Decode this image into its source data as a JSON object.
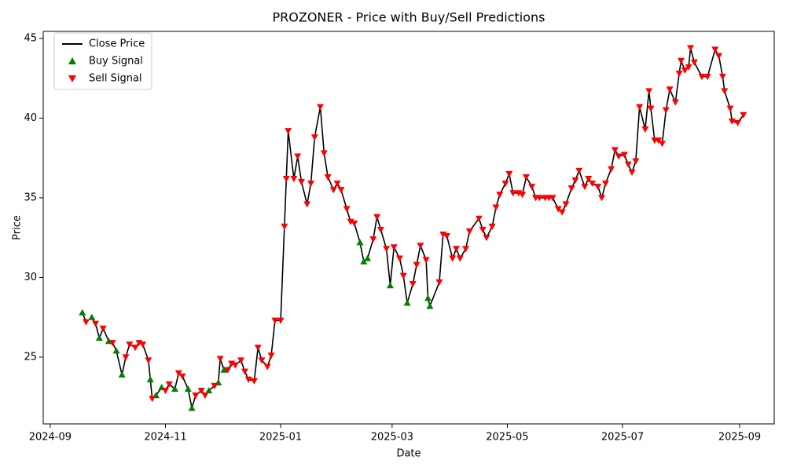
{
  "chart_data": {
    "type": "line",
    "title": "PROZONER - Price with Buy/Sell Predictions",
    "x_label": "Date",
    "y_label": "Price",
    "xlim": [
      19963.3,
      20350.3
    ],
    "ylim": [
      20.81,
      45.44
    ],
    "xticks": [
      {
        "value": 19967,
        "label": "2024-09"
      },
      {
        "value": 20028,
        "label": "2024-11"
      },
      {
        "value": 20089,
        "label": "2025-01"
      },
      {
        "value": 20148,
        "label": "2025-03"
      },
      {
        "value": 20209,
        "label": "2025-05"
      },
      {
        "value": 20270,
        "label": "2025-07"
      },
      {
        "value": 20332,
        "label": "2025-09"
      }
    ],
    "yticks": [
      25,
      30,
      35,
      40,
      45
    ],
    "legend": "upper left",
    "series": [
      {
        "name": "Close Price",
        "type": "line",
        "color": "#000000",
        "x": [
          19984,
          19986,
          19989,
          19991,
          19993,
          19995,
          19998,
          20000,
          20002,
          20005,
          20007,
          20009,
          20012,
          20014,
          20016,
          20019,
          20020,
          20021,
          20023,
          20026,
          20028,
          20030,
          20033,
          20035,
          20037,
          20040,
          20042,
          20044,
          20047,
          20049,
          20051,
          20054,
          20056,
          20057,
          20059,
          20061,
          20063,
          20065,
          20068,
          20070,
          20072,
          20075,
          20077,
          20079,
          20082,
          20084,
          20086,
          20089,
          20091,
          20092,
          20093,
          20096,
          20098,
          20100,
          20103,
          20105,
          20107,
          20110,
          20112,
          20114,
          20117,
          20119,
          20121,
          20124,
          20126,
          20128,
          20131,
          20133,
          20135,
          20138,
          20140,
          20142,
          20145,
          20147,
          20149,
          20152,
          20154,
          20156,
          20159,
          20161,
          20163,
          20166,
          20167,
          20168,
          20173,
          20175,
          20177,
          20180,
          20182,
          20184,
          20187,
          20189,
          20194,
          20196,
          20198,
          20201,
          20203,
          20205,
          20208,
          20210,
          20212,
          20215,
          20217,
          20219,
          20222,
          20224,
          20226,
          20229,
          20231,
          20233,
          20236,
          20238,
          20240,
          20243,
          20245,
          20247,
          20250,
          20252,
          20254,
          20257,
          20259,
          20261,
          20264,
          20266,
          20268,
          20271,
          20273,
          20275,
          20277,
          20279,
          20282,
          20284,
          20285,
          20287,
          20289,
          20291,
          20293,
          20295,
          20298,
          20300,
          20301,
          20303,
          20305,
          20306,
          20308,
          20312,
          20315,
          20319,
          20321,
          20323,
          20324,
          20327,
          20328,
          20331,
          20334
        ],
        "values": [
          27.8,
          27.2,
          27.5,
          27.1,
          26.2,
          26.8,
          26.0,
          25.9,
          25.4,
          23.9,
          25.0,
          25.8,
          25.6,
          25.9,
          25.8,
          24.8,
          23.6,
          22.4,
          22.6,
          23.1,
          22.9,
          23.3,
          23.0,
          24.0,
          23.8,
          23.0,
          21.8,
          22.6,
          22.9,
          22.6,
          22.9,
          23.2,
          23.4,
          24.9,
          24.2,
          24.2,
          24.6,
          24.5,
          24.8,
          24.1,
          23.6,
          23.5,
          25.6,
          24.8,
          24.4,
          25.1,
          27.3,
          27.3,
          33.2,
          36.2,
          39.2,
          36.2,
          37.6,
          36.0,
          34.6,
          35.9,
          38.8,
          40.7,
          37.8,
          36.3,
          35.5,
          35.9,
          35.5,
          34.3,
          33.5,
          33.4,
          32.2,
          31.0,
          31.2,
          32.4,
          33.8,
          33.0,
          31.8,
          29.5,
          31.9,
          31.2,
          30.1,
          28.4,
          29.6,
          30.8,
          32.0,
          31.1,
          28.7,
          28.2,
          29.7,
          32.7,
          32.6,
          31.2,
          31.8,
          31.2,
          31.8,
          32.9,
          33.7,
          33.0,
          32.5,
          33.2,
          34.4,
          35.2,
          35.9,
          36.5,
          35.3,
          35.3,
          35.2,
          36.3,
          35.7,
          35.0,
          35.0,
          35.0,
          35.0,
          35.0,
          34.3,
          34.1,
          34.6,
          35.6,
          36.1,
          36.7,
          35.7,
          36.2,
          35.9,
          35.7,
          35.0,
          35.9,
          36.8,
          38.0,
          37.6,
          37.7,
          37.1,
          36.6,
          37.3,
          40.7,
          39.3,
          41.7,
          40.6,
          38.6,
          38.6,
          38.4,
          40.5,
          41.8,
          41.0,
          42.8,
          43.6,
          43.0,
          43.2,
          44.4,
          43.5,
          42.6,
          42.6,
          44.3,
          43.9,
          42.6,
          41.7,
          40.6,
          39.8,
          39.7,
          40.2
        ]
      },
      {
        "name": "Buy Signal",
        "type": "scatter",
        "marker": "triangle-up",
        "color": "#008000",
        "x": [
          19984,
          19989,
          19993,
          19998,
          20002,
          20005,
          20020,
          20023,
          20026,
          20033,
          20040,
          20042,
          20051,
          20056,
          20059,
          20131,
          20133,
          20135,
          20147,
          20156,
          20167,
          20168
        ],
        "values": [
          27.8,
          27.5,
          26.2,
          26.0,
          25.4,
          23.9,
          23.6,
          22.6,
          23.1,
          23.0,
          23.0,
          21.8,
          22.9,
          23.4,
          24.2,
          32.2,
          31.0,
          31.2,
          29.5,
          28.4,
          28.7,
          28.2
        ]
      },
      {
        "name": "Sell Signal",
        "type": "scatter",
        "marker": "triangle-down",
        "color": "#ff0000",
        "x": [
          19986,
          19991,
          19995,
          20000,
          20007,
          20009,
          20012,
          20014,
          20016,
          20019,
          20021,
          20028,
          20030,
          20035,
          20037,
          20044,
          20047,
          20049,
          20054,
          20057,
          20061,
          20063,
          20065,
          20068,
          20070,
          20072,
          20075,
          20077,
          20079,
          20082,
          20084,
          20086,
          20089,
          20091,
          20092,
          20093,
          20096,
          20098,
          20100,
          20103,
          20105,
          20107,
          20110,
          20112,
          20114,
          20117,
          20119,
          20121,
          20124,
          20126,
          20128,
          20138,
          20140,
          20142,
          20145,
          20149,
          20152,
          20154,
          20159,
          20161,
          20163,
          20166,
          20173,
          20175,
          20177,
          20180,
          20182,
          20184,
          20187,
          20189,
          20194,
          20196,
          20198,
          20201,
          20203,
          20205,
          20208,
          20210,
          20212,
          20215,
          20217,
          20219,
          20222,
          20224,
          20226,
          20229,
          20231,
          20233,
          20236,
          20238,
          20240,
          20243,
          20245,
          20247,
          20250,
          20252,
          20254,
          20257,
          20259,
          20261,
          20264,
          20266,
          20268,
          20271,
          20273,
          20275,
          20277,
          20279,
          20282,
          20284,
          20285,
          20287,
          20289,
          20291,
          20293,
          20295,
          20298,
          20300,
          20301,
          20303,
          20305,
          20306,
          20308,
          20312,
          20315,
          20319,
          20321,
          20323,
          20324,
          20327,
          20328,
          20331,
          20334
        ],
        "values": [
          27.2,
          27.1,
          26.8,
          25.9,
          25.0,
          25.8,
          25.6,
          25.9,
          25.8,
          24.8,
          22.4,
          22.9,
          23.3,
          24.0,
          23.8,
          22.6,
          22.9,
          22.6,
          23.2,
          24.9,
          24.2,
          24.6,
          24.5,
          24.8,
          24.1,
          23.6,
          23.5,
          25.6,
          24.8,
          24.4,
          25.1,
          27.3,
          27.3,
          33.2,
          36.2,
          39.2,
          36.2,
          37.6,
          36.0,
          34.6,
          35.9,
          38.8,
          40.7,
          37.8,
          36.3,
          35.5,
          35.9,
          35.5,
          34.3,
          33.5,
          33.4,
          32.4,
          33.8,
          33.0,
          31.8,
          31.9,
          31.2,
          30.1,
          29.6,
          30.8,
          32.0,
          31.1,
          29.7,
          32.7,
          32.6,
          31.2,
          31.8,
          31.2,
          31.8,
          32.9,
          33.7,
          33.0,
          32.5,
          33.2,
          34.4,
          35.2,
          35.9,
          36.5,
          35.3,
          35.3,
          35.2,
          36.3,
          35.7,
          35.0,
          35.0,
          35.0,
          35.0,
          35.0,
          34.3,
          34.1,
          34.6,
          35.6,
          36.1,
          36.7,
          35.7,
          36.2,
          35.9,
          35.7,
          35.0,
          35.9,
          36.8,
          38.0,
          37.6,
          37.7,
          37.1,
          36.6,
          37.3,
          40.7,
          39.3,
          41.7,
          40.6,
          38.6,
          38.6,
          38.4,
          40.5,
          41.8,
          41.0,
          42.8,
          43.6,
          43.0,
          43.2,
          44.4,
          43.5,
          42.6,
          42.6,
          44.3,
          43.9,
          42.6,
          41.7,
          40.6,
          39.8,
          39.7,
          40.2
        ]
      }
    ]
  }
}
